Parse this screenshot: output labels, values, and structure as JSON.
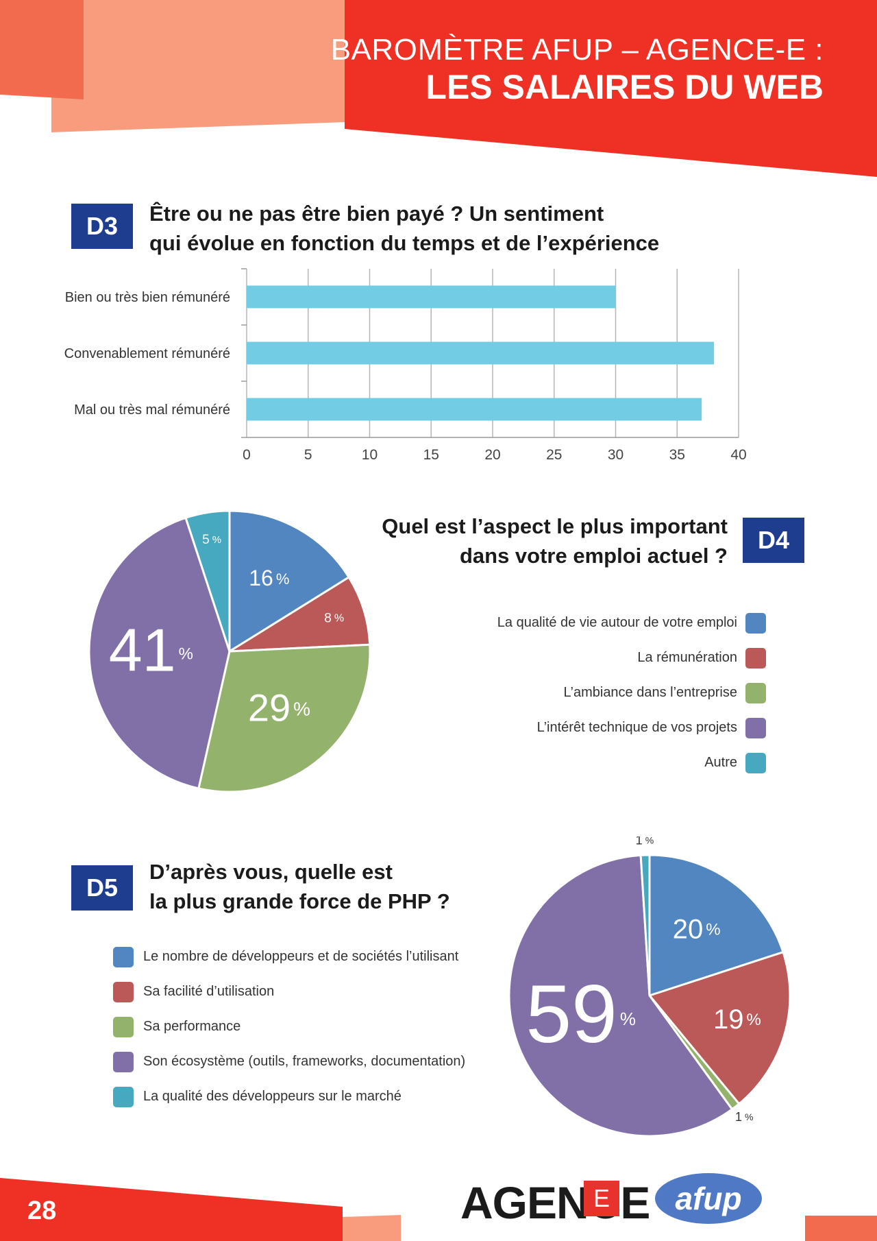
{
  "header": {
    "line1": "BAROMÈTRE AFUP – AGENCE-E :",
    "line2": "LES SALAIRES DU WEB"
  },
  "colors": {
    "red": "#ee3124",
    "salmon": "#f99b7d",
    "dark_salmon": "#f26b4f",
    "badge_blue": "#1f3d8f",
    "bar_cyan": "#72cce4",
    "slice_blue": "#5186c1",
    "slice_red": "#bb5959",
    "slice_green": "#93b26c",
    "slice_purple": "#8170a8",
    "slice_teal": "#46a9bf"
  },
  "d3": {
    "badge": "D3",
    "title_line1": "Être ou ne pas être bien payé ? Un sentiment",
    "title_line2": "qui évolue en fonction du temps et de l’expérience"
  },
  "d4": {
    "badge": "D4",
    "title_line1": "Quel est l’aspect le plus important",
    "title_line2": "dans votre emploi actuel ?",
    "legend": [
      "La qualité de vie autour de votre emploi",
      "La rémunération",
      "L’ambiance dans l’entreprise",
      "L’intérêt technique de vos projets",
      "Autre"
    ]
  },
  "d5": {
    "badge": "D5",
    "title_line1": "D’après vous, quelle est",
    "title_line2": "la plus grande force de PHP ?",
    "legend": [
      "Le nombre de développeurs et de sociétés l’utilisant",
      "Sa facilité d’utilisation",
      "Sa performance",
      "Son écosystème (outils, frameworks, documentation)",
      "La qualité des développeurs sur le marché"
    ]
  },
  "chart_data": [
    {
      "type": "bar",
      "orientation": "horizontal",
      "categories": [
        "Bien ou très bien rémunéré",
        "Convenablement rémunéré",
        "Mal ou très mal rémunéré"
      ],
      "values": [
        30,
        38,
        37
      ],
      "xlim": [
        0,
        40
      ],
      "xticks": [
        0,
        5,
        10,
        15,
        20,
        25,
        30,
        35,
        40
      ],
      "grid": true
    },
    {
      "type": "pie",
      "labels": [
        "La qualité de vie autour de votre emploi",
        "La rémunération",
        "L’ambiance dans l’entreprise",
        "L’intérêt technique de vos projets",
        "Autre"
      ],
      "values": [
        16,
        8,
        29,
        41,
        5
      ],
      "legend_position": "right"
    },
    {
      "type": "pie",
      "labels": [
        "Le nombre de développeurs et de sociétés l’utilisant",
        "Sa facilité d’utilisation",
        "Sa performance",
        "Son écosystème (outils, frameworks, documentation)",
        "La qualité des développeurs sur le marché"
      ],
      "values": [
        20,
        19,
        1,
        59,
        1
      ],
      "legend_position": "left"
    }
  ],
  "footer": {
    "page_number": "28",
    "logo_agence": "AGENCE",
    "logo_e": "E",
    "logo_afup": "afup"
  }
}
